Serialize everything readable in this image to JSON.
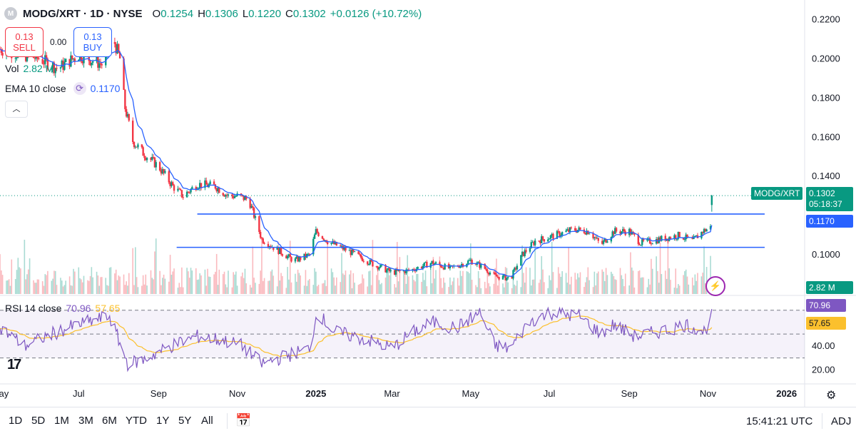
{
  "header": {
    "logo": "M",
    "symbol": "MODG/XRT · 1D · NYSE",
    "open_label": "O",
    "open": "0.1254",
    "high_label": "H",
    "high": "0.1306",
    "low_label": "L",
    "low": "0.1220",
    "close_label": "C",
    "close": "0.1302",
    "change": "+0.0126 (+10.72%)"
  },
  "trade": {
    "sell_price": "0.13",
    "sell_label": "SELL",
    "spread": "0.00",
    "buy_price": "0.13",
    "buy_label": "BUY"
  },
  "indicators": {
    "vol_label": "Vol",
    "vol_value": "2.82 M",
    "ema_label": "EMA 10 close",
    "ema_value": "0.1170",
    "rsi_label": "RSI 14 close",
    "rsi_value": "70.96",
    "rsi_ma_value": "57.65"
  },
  "price_labels": {
    "symbol_tag": "MODG/XRT",
    "last": "0.1302",
    "countdown": "05:18:37",
    "ema": "0.1170",
    "volume": "2.82 M",
    "rsi": "70.96",
    "rsi_ma": "57.65"
  },
  "bottombar": {
    "timeframes": [
      "1D",
      "5D",
      "1M",
      "3M",
      "6M",
      "YTD",
      "1Y",
      "5Y",
      "All"
    ],
    "clock": "15:41:21 UTC",
    "adj": "ADJ"
  },
  "colors": {
    "up": "#089981",
    "down": "#f23645",
    "ema": "#2962ff",
    "rsi": "#7e57c2",
    "rsi_ma": "#fbc02d",
    "hline": "#2962ff"
  },
  "icons": {
    "sync": "sync-icon",
    "collapse": "chevron-up-icon",
    "flash": "lightning-icon",
    "calendar": "calendar-icon",
    "settings": "gear-icon"
  },
  "chart_data": {
    "type": "candlestick",
    "price_axis": {
      "min": 0.08,
      "max": 0.23,
      "ticks": [
        "0.2200",
        "0.2000",
        "0.1800",
        "0.1600",
        "0.1400",
        "0.1000"
      ]
    },
    "rsi_axis": {
      "min": 10,
      "max": 80,
      "ticks": [
        "40.00",
        "20.00"
      ],
      "bands": [
        70,
        50,
        30
      ]
    },
    "time_axis": {
      "start": "2024-05-01",
      "end": "2026-01-15",
      "labels": [
        {
          "t": "2024-05-01",
          "text": "May"
        },
        {
          "t": "2024-07-01",
          "text": "Jul"
        },
        {
          "t": "2024-09-01",
          "text": "Sep"
        },
        {
          "t": "2024-11-01",
          "text": "Nov"
        },
        {
          "t": "2025-01-01",
          "text": "2025"
        },
        {
          "t": "2025-03-01",
          "text": "Mar"
        },
        {
          "t": "2025-05-01",
          "text": "May"
        },
        {
          "t": "2025-07-01",
          "text": "Jul"
        },
        {
          "t": "2025-09-01",
          "text": "Sep"
        },
        {
          "t": "2025-11-01",
          "text": "Nov"
        },
        {
          "t": "2026-01-01",
          "text": "2026"
        }
      ]
    },
    "price_anchors": [
      [
        "2024-05-01",
        0.205
      ],
      [
        "2024-06-01",
        0.2
      ],
      [
        "2024-06-15",
        0.195
      ],
      [
        "2024-07-01",
        0.202
      ],
      [
        "2024-07-20",
        0.197
      ],
      [
        "2024-07-28",
        0.21
      ],
      [
        "2024-08-02",
        0.2
      ],
      [
        "2024-08-06",
        0.175
      ],
      [
        "2024-08-12",
        0.158
      ],
      [
        "2024-08-20",
        0.152
      ],
      [
        "2024-09-01",
        0.145
      ],
      [
        "2024-09-12",
        0.135
      ],
      [
        "2024-09-20",
        0.13
      ],
      [
        "2024-10-01",
        0.136
      ],
      [
        "2024-10-15",
        0.135
      ],
      [
        "2024-10-25",
        0.13
      ],
      [
        "2024-11-01",
        0.13
      ],
      [
        "2024-11-10",
        0.128
      ],
      [
        "2024-11-20",
        0.108
      ],
      [
        "2024-12-01",
        0.103
      ],
      [
        "2024-12-15",
        0.097
      ],
      [
        "2024-12-27",
        0.1
      ],
      [
        "2025-01-01",
        0.112
      ],
      [
        "2025-01-10",
        0.107
      ],
      [
        "2025-02-01",
        0.1
      ],
      [
        "2025-02-15",
        0.095
      ],
      [
        "2025-03-01",
        0.091
      ],
      [
        "2025-03-15",
        0.092
      ],
      [
        "2025-04-01",
        0.096
      ],
      [
        "2025-04-15",
        0.093
      ],
      [
        "2025-05-01",
        0.097
      ],
      [
        "2025-05-10",
        0.094
      ],
      [
        "2025-05-20",
        0.089
      ],
      [
        "2025-06-01",
        0.088
      ],
      [
        "2025-06-10",
        0.1
      ],
      [
        "2025-06-20",
        0.107
      ],
      [
        "2025-07-01",
        0.109
      ],
      [
        "2025-07-20",
        0.113
      ],
      [
        "2025-08-01",
        0.112
      ],
      [
        "2025-08-10",
        0.105
      ],
      [
        "2025-08-20",
        0.112
      ],
      [
        "2025-09-01",
        0.112
      ],
      [
        "2025-09-10",
        0.106
      ],
      [
        "2025-09-25",
        0.108
      ],
      [
        "2025-10-10",
        0.11
      ],
      [
        "2025-10-20",
        0.107
      ],
      [
        "2025-10-28",
        0.112
      ],
      [
        "2025-11-03",
        0.114
      ],
      [
        "2025-11-04",
        0.1302
      ]
    ],
    "last_candle": {
      "t": "2025-11-04",
      "open": 0.1254,
      "high": 0.1306,
      "low": 0.122,
      "close": 0.1302
    },
    "horizontal_lines": [
      {
        "price": 0.1208,
        "from": "2024-10-01",
        "to": "2025-12-15"
      },
      {
        "price": 0.1038,
        "from": "2024-09-15",
        "to": "2025-12-15"
      }
    ],
    "rsi_anchors": [
      [
        "2024-05-01",
        55
      ],
      [
        "2024-05-20",
        40
      ],
      [
        "2024-06-10",
        50
      ],
      [
        "2024-07-01",
        58
      ],
      [
        "2024-07-25",
        65
      ],
      [
        "2024-08-08",
        25
      ],
      [
        "2024-08-20",
        28
      ],
      [
        "2024-09-01",
        35
      ],
      [
        "2024-09-15",
        42
      ],
      [
        "2024-10-01",
        48
      ],
      [
        "2024-10-20",
        45
      ],
      [
        "2024-11-05",
        40
      ],
      [
        "2024-11-20",
        25
      ],
      [
        "2024-12-10",
        32
      ],
      [
        "2024-12-27",
        38
      ],
      [
        "2025-01-02",
        68
      ],
      [
        "2025-01-15",
        52
      ],
      [
        "2025-02-10",
        45
      ],
      [
        "2025-03-01",
        38
      ],
      [
        "2025-03-15",
        50
      ],
      [
        "2025-04-01",
        60
      ],
      [
        "2025-04-20",
        55
      ],
      [
        "2025-05-08",
        68
      ],
      [
        "2025-05-20",
        40
      ],
      [
        "2025-06-01",
        38
      ],
      [
        "2025-06-15",
        60
      ],
      [
        "2025-07-01",
        68
      ],
      [
        "2025-07-25",
        65
      ],
      [
        "2025-08-10",
        50
      ],
      [
        "2025-08-20",
        58
      ],
      [
        "2025-09-05",
        48
      ],
      [
        "2025-09-25",
        52
      ],
      [
        "2025-10-15",
        58
      ],
      [
        "2025-10-30",
        52
      ],
      [
        "2025-11-04",
        70.96
      ]
    ]
  }
}
